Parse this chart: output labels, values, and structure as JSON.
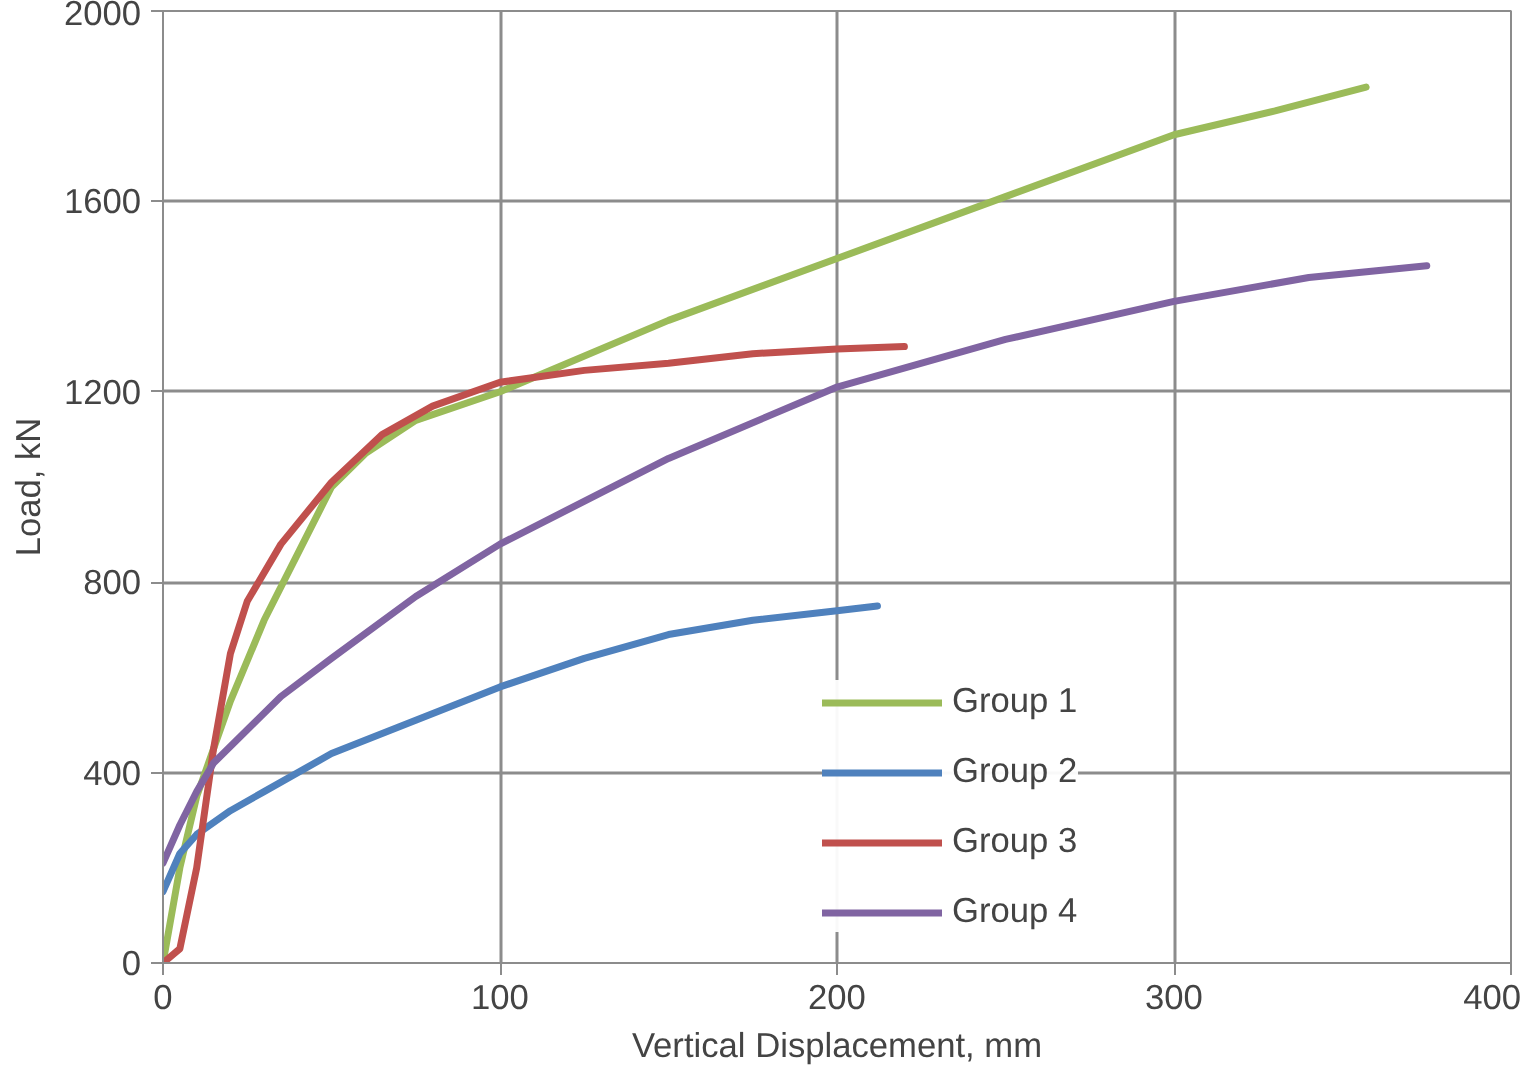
{
  "chart_data": {
    "type": "line",
    "xlabel": "Vertical Displacement, mm",
    "ylabel": "Load, kN",
    "xlim": [
      0,
      400
    ],
    "ylim": [
      0,
      2000
    ],
    "xticks": [
      0,
      100,
      200,
      300,
      400
    ],
    "yticks": [
      0,
      400,
      800,
      1200,
      1600,
      2000
    ],
    "grid": true,
    "legend": "right",
    "line_style": "solid",
    "series": [
      {
        "name": "Group 1",
        "color": "#9bbb59",
        "x": [
          0,
          5,
          10,
          20,
          30,
          40,
          50,
          60,
          75,
          100,
          150,
          200,
          250,
          300,
          330,
          357
        ],
        "values": [
          0,
          200,
          350,
          550,
          720,
          860,
          1000,
          1070,
          1140,
          1200,
          1350,
          1480,
          1610,
          1740,
          1790,
          1840
        ]
      },
      {
        "name": "Group 2",
        "color": "#4f81bd",
        "x": [
          0,
          5,
          10,
          20,
          30,
          50,
          75,
          100,
          125,
          150,
          175,
          200,
          212
        ],
        "values": [
          150,
          230,
          270,
          320,
          360,
          440,
          510,
          580,
          640,
          690,
          720,
          740,
          750
        ]
      },
      {
        "name": "Group 3",
        "color": "#c0504d",
        "x": [
          0,
          5,
          10,
          15,
          20,
          25,
          35,
          50,
          65,
          80,
          100,
          125,
          150,
          175,
          200,
          220
        ],
        "values": [
          0,
          30,
          200,
          450,
          650,
          760,
          880,
          1010,
          1110,
          1170,
          1220,
          1245,
          1260,
          1280,
          1290,
          1295
        ]
      },
      {
        "name": "Group 4",
        "color": "#8064a2",
        "x": [
          0,
          5,
          10,
          15,
          25,
          35,
          50,
          75,
          100,
          150,
          200,
          250,
          300,
          340,
          375
        ],
        "values": [
          210,
          290,
          360,
          420,
          490,
          560,
          640,
          770,
          880,
          1060,
          1210,
          1310,
          1390,
          1440,
          1465
        ]
      }
    ]
  }
}
